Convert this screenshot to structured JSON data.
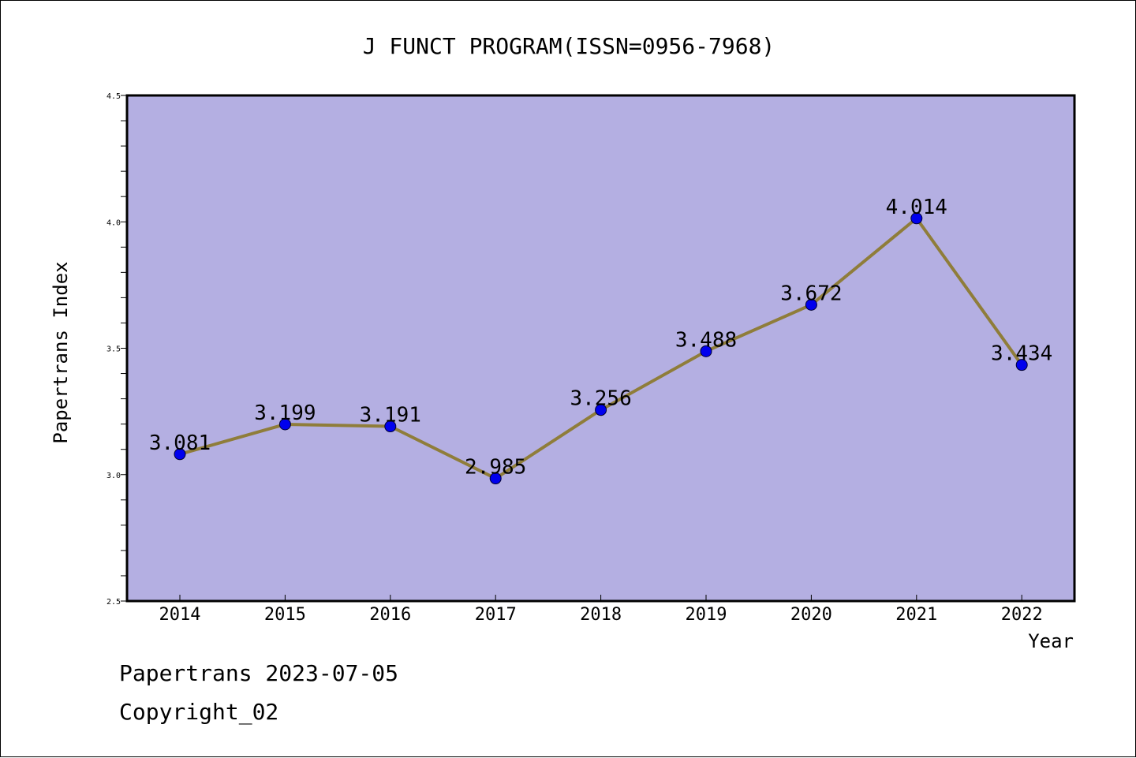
{
  "chart_data": {
    "type": "line",
    "title": "J FUNCT PROGRAM(ISSN=0956-7968)",
    "xlabel": "Year",
    "ylabel": "Papertrans Index",
    "categories": [
      "2014",
      "2015",
      "2016",
      "2017",
      "2018",
      "2019",
      "2020",
      "2021",
      "2022"
    ],
    "series": [
      {
        "values": [
          3.081,
          3.199,
          3.191,
          2.985,
          3.256,
          3.488,
          3.672,
          4.014,
          3.434
        ],
        "data_labels": [
          "3.081",
          "3.199",
          "3.191",
          "2.985",
          "3.256",
          "3.488",
          "3.672",
          "4.014",
          "3.434"
        ]
      }
    ],
    "ylim": [
      2.5,
      4.5
    ],
    "yticks": [
      "2.5",
      "3.0",
      "3.5",
      "4.0",
      "4.5"
    ],
    "grid": false,
    "colors": {
      "plot_background": "#b4afe2",
      "line": "#8f7d3a",
      "marker": "#0000ee"
    }
  },
  "footer": {
    "date": "Papertrans 2023-07-05",
    "copyright": "Copyright_02"
  }
}
